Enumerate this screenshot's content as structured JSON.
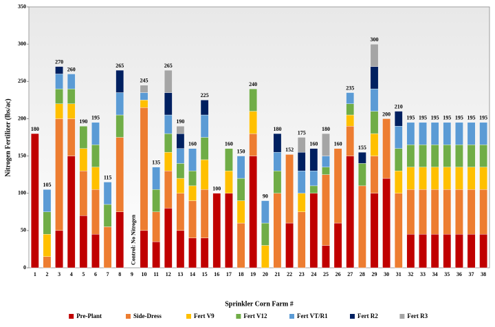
{
  "chart_data": {
    "type": "stacked-bar",
    "ylabel": "Nitrogen Fertilizer (lbs/ac)",
    "xlabel": "Sprinkler Corn Farm #",
    "annotation": "Control: No Nitrogen",
    "categories": [
      "1",
      "2",
      "3",
      "4",
      "5",
      "6",
      "7",
      "8",
      "9",
      "10",
      "11",
      "12",
      "13",
      "14",
      "15",
      "16",
      "17",
      "18",
      "19",
      "20",
      "21",
      "22",
      "23",
      "24",
      "25",
      "26",
      "27",
      "28",
      "29",
      "30",
      "31",
      "32",
      "33",
      "34",
      "35",
      "36",
      "37",
      "38"
    ],
    "series": [
      {
        "name": "Pre-Plant",
        "color": "#c00000",
        "values": [
          180,
          0,
          50,
          150,
          70,
          45,
          0,
          75,
          0,
          50,
          35,
          80,
          50,
          40,
          40,
          100,
          100,
          0,
          150,
          0,
          0,
          60,
          0,
          100,
          30,
          60,
          150,
          0,
          100,
          120,
          0,
          45,
          45,
          45,
          45,
          45,
          45,
          45
        ]
      },
      {
        "name": "Side-Dress",
        "color": "#ed7d31",
        "values": [
          0,
          15,
          150,
          50,
          60,
          60,
          55,
          100,
          0,
          165,
          40,
          50,
          50,
          50,
          65,
          0,
          0,
          60,
          30,
          0,
          100,
          92,
          75,
          0,
          95,
          100,
          40,
          110,
          50,
          80,
          100,
          60,
          60,
          60,
          60,
          60,
          60,
          60
        ]
      },
      {
        "name": "Fert V9",
        "color": "#ffc000",
        "values": [
          0,
          30,
          20,
          20,
          30,
          30,
          0,
          0,
          0,
          10,
          0,
          25,
          20,
          20,
          40,
          0,
          30,
          30,
          30,
          30,
          0,
          0,
          25,
          0,
          0,
          0,
          15,
          0,
          30,
          0,
          30,
          30,
          30,
          30,
          30,
          30,
          30,
          30
        ]
      },
      {
        "name": "Fert V12",
        "color": "#70ad47",
        "values": [
          0,
          30,
          20,
          20,
          30,
          30,
          30,
          30,
          0,
          0,
          30,
          25,
          20,
          20,
          30,
          0,
          30,
          30,
          30,
          30,
          30,
          0,
          0,
          10,
          10,
          0,
          15,
          30,
          30,
          0,
          30,
          30,
          30,
          30,
          30,
          30,
          30,
          30
        ]
      },
      {
        "name": "Fert VT/R1",
        "color": "#5b9bd5",
        "values": [
          0,
          30,
          20,
          20,
          0,
          30,
          30,
          30,
          0,
          10,
          30,
          25,
          20,
          30,
          30,
          0,
          0,
          30,
          0,
          30,
          25,
          0,
          30,
          20,
          15,
          0,
          15,
          0,
          30,
          0,
          30,
          30,
          30,
          30,
          30,
          30,
          30,
          30
        ]
      },
      {
        "name": "Fert R2",
        "color": "#002060",
        "values": [
          0,
          0,
          10,
          0,
          0,
          0,
          0,
          30,
          0,
          0,
          0,
          30,
          20,
          0,
          20,
          0,
          0,
          0,
          0,
          0,
          25,
          0,
          25,
          30,
          0,
          0,
          0,
          15,
          30,
          0,
          20,
          0,
          0,
          0,
          0,
          0,
          0,
          0
        ]
      },
      {
        "name": "Fert R3",
        "color": "#a5a5a5",
        "values": [
          0,
          0,
          0,
          0,
          0,
          0,
          0,
          0,
          0,
          10,
          0,
          30,
          10,
          0,
          0,
          0,
          0,
          0,
          0,
          0,
          0,
          0,
          20,
          0,
          30,
          0,
          0,
          0,
          30,
          0,
          0,
          0,
          0,
          0,
          0,
          0,
          0,
          0
        ]
      }
    ],
    "totals": [
      180,
      105,
      270,
      260,
      190,
      195,
      115,
      265,
      null,
      245,
      135,
      265,
      190,
      160,
      225,
      100,
      160,
      150,
      240,
      90,
      180,
      152,
      175,
      160,
      180,
      160,
      235,
      155,
      300,
      200,
      210,
      195,
      195,
      195,
      195,
      195,
      195,
      195
    ],
    "ylim": [
      0,
      350
    ],
    "yticks": [
      0,
      50,
      100,
      150,
      200,
      250,
      300,
      350
    ],
    "legend": "bottom"
  }
}
